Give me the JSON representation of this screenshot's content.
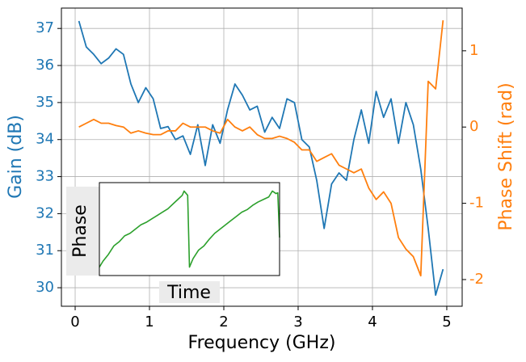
{
  "chart_data": [
    {
      "type": "line",
      "xlabel": "Frequency (GHz)",
      "ylabel": "Gain (dB)",
      "y2label": "Phase Shift (rad)",
      "x": [
        0.05,
        0.15,
        0.25,
        0.35,
        0.45,
        0.55,
        0.65,
        0.75,
        0.85,
        0.95,
        1.05,
        1.15,
        1.25,
        1.35,
        1.45,
        1.55,
        1.65,
        1.75,
        1.85,
        1.95,
        2.05,
        2.15,
        2.25,
        2.35,
        2.45,
        2.55,
        2.65,
        2.75,
        2.85,
        2.95,
        3.05,
        3.15,
        3.25,
        3.35,
        3.45,
        3.55,
        3.65,
        3.75,
        3.85,
        3.95,
        4.05,
        4.15,
        4.25,
        4.35,
        4.45,
        4.55,
        4.65,
        4.75,
        4.85,
        4.95
      ],
      "series": [
        {
          "name": "Gain (dB)",
          "color": "#1f77b4",
          "axis": "y",
          "values": [
            37.2,
            36.5,
            36.3,
            36.05,
            36.2,
            36.45,
            36.3,
            35.5,
            35.0,
            35.4,
            35.1,
            34.3,
            34.35,
            34.0,
            34.1,
            33.6,
            34.4,
            33.3,
            34.4,
            33.9,
            34.8,
            35.5,
            35.2,
            34.8,
            34.9,
            34.2,
            34.6,
            34.3,
            35.1,
            35.0,
            34.0,
            33.8,
            32.9,
            31.6,
            32.8,
            33.1,
            32.9,
            34.0,
            34.8,
            33.9,
            35.3,
            34.6,
            35.1,
            33.9,
            35.0,
            34.4,
            33.2,
            31.6,
            29.8,
            30.5
          ]
        },
        {
          "name": "Phase Shift (rad)",
          "color": "#ff7f0e",
          "axis": "y2",
          "values": [
            0.0,
            0.05,
            0.1,
            0.05,
            0.05,
            0.02,
            0.0,
            -0.08,
            -0.05,
            -0.08,
            -0.1,
            -0.1,
            -0.05,
            -0.05,
            0.05,
            0.0,
            0.0,
            0.0,
            -0.05,
            -0.08,
            0.1,
            0.0,
            -0.05,
            0.0,
            -0.1,
            -0.15,
            -0.15,
            -0.12,
            -0.15,
            -0.2,
            -0.3,
            -0.3,
            -0.45,
            -0.4,
            -0.35,
            -0.5,
            -0.55,
            -0.6,
            -0.55,
            -0.8,
            -0.95,
            -0.85,
            -1.0,
            -1.45,
            -1.6,
            -1.7,
            -1.95,
            0.6,
            0.5,
            1.4
          ]
        }
      ],
      "xlim": [
        -0.185,
        5.207
      ],
      "xticks": [
        0,
        1,
        2,
        3,
        4,
        5
      ],
      "ylim": [
        29.5,
        37.55
      ],
      "yticks": [
        30,
        31,
        32,
        33,
        34,
        35,
        36,
        37
      ],
      "y2lim": [
        -2.35,
        1.56
      ],
      "y2ticks": [
        -2,
        -1,
        0,
        1
      ],
      "grid": true
    },
    {
      "type": "line",
      "xlabel": "Time",
      "ylabel": "Phase",
      "color": "#2ca02c",
      "x": [
        0,
        0.02,
        0.05,
        0.08,
        0.11,
        0.14,
        0.17,
        0.2,
        0.23,
        0.26,
        0.29,
        0.32,
        0.35,
        0.38,
        0.41,
        0.44,
        0.46,
        0.47,
        0.49,
        0.5,
        0.52,
        0.55,
        0.58,
        0.61,
        0.64,
        0.67,
        0.7,
        0.73,
        0.76,
        0.79,
        0.82,
        0.85,
        0.88,
        0.91,
        0.94,
        0.96,
        0.98,
        0.99,
        1.0
      ],
      "values": [
        0.05,
        0.12,
        0.2,
        0.3,
        0.35,
        0.42,
        0.45,
        0.5,
        0.55,
        0.58,
        0.62,
        0.66,
        0.7,
        0.74,
        0.8,
        0.86,
        0.9,
        0.95,
        0.9,
        0.05,
        0.15,
        0.25,
        0.3,
        0.38,
        0.45,
        0.5,
        0.55,
        0.6,
        0.65,
        0.7,
        0.73,
        0.78,
        0.82,
        0.85,
        0.88,
        0.95,
        0.92,
        0.93,
        0.4
      ],
      "xlim": [
        0,
        1
      ],
      "ylim": [
        -0.05,
        1.05
      ]
    }
  ]
}
